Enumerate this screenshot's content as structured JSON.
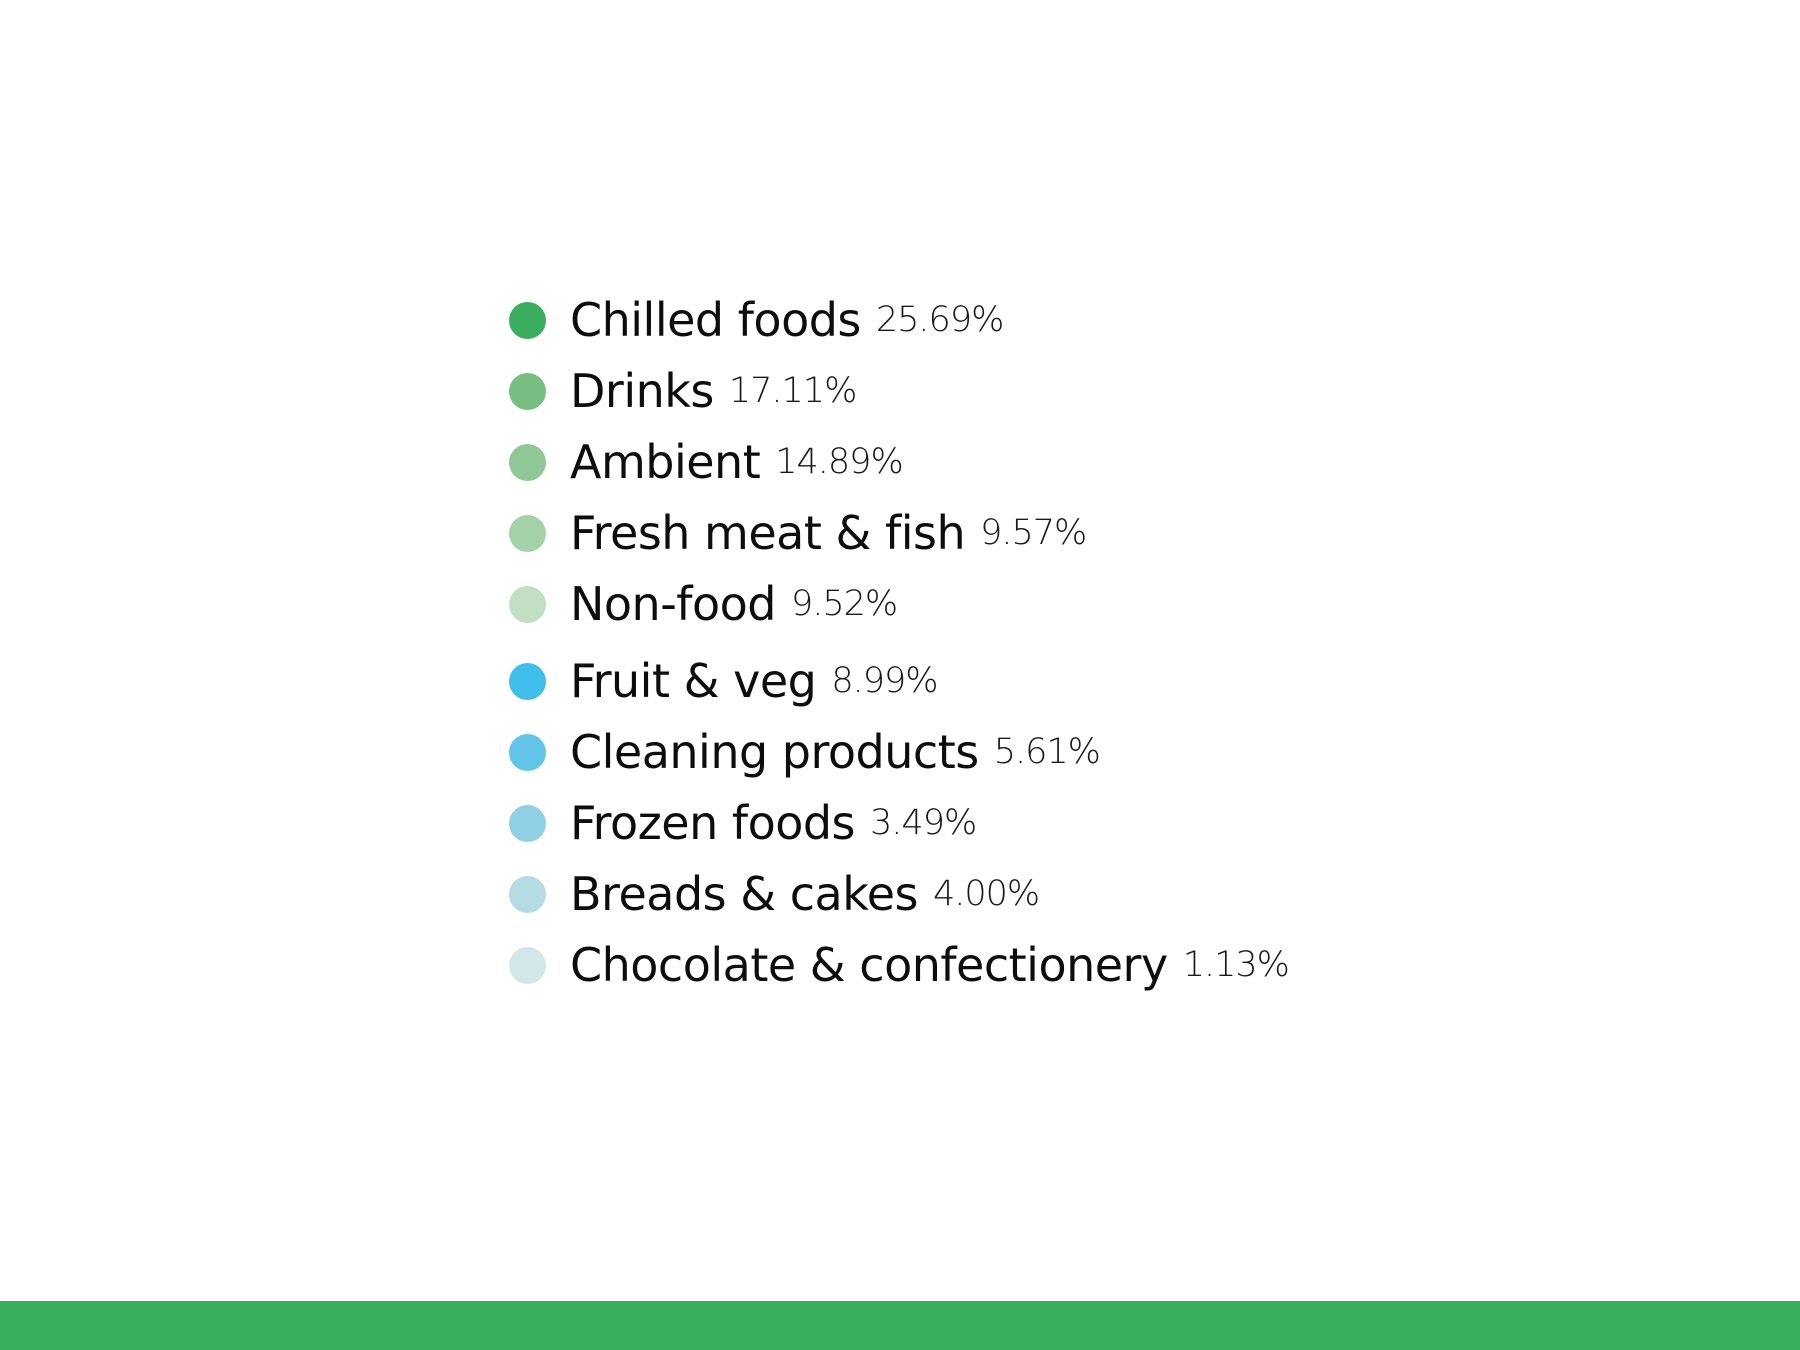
{
  "chart_data": {
    "type": "pie",
    "categories": [
      "Chilled foods",
      "Drinks",
      "Ambient",
      "Fresh meat & fish",
      "Non-food",
      "Fruit & veg",
      "Cleaning products",
      "Frozen foods",
      "Breads & cakes",
      "Chocolate & confectionery"
    ],
    "values": [
      25.69,
      17.11,
      14.89,
      9.57,
      9.52,
      8.99,
      5.61,
      3.49,
      4.0,
      1.13
    ],
    "value_labels": [
      "25.69%",
      "17.11%",
      "14.89%",
      "9.57%",
      "9.52%",
      "8.99%",
      "5.61%",
      "3.49%",
      "4.00%",
      "1.13%"
    ],
    "colors": [
      "#3aad5f",
      "#78be82",
      "#8fc796",
      "#a3d2a9",
      "#c2dfc4",
      "#41bfec",
      "#61c4e8",
      "#8fd0e4",
      "#b4dce2",
      "#d3e6ea"
    ],
    "legend_placement": "center",
    "title": "",
    "xlabel": "",
    "ylabel": ""
  },
  "footer": {
    "bar_color": "#38b05a"
  }
}
